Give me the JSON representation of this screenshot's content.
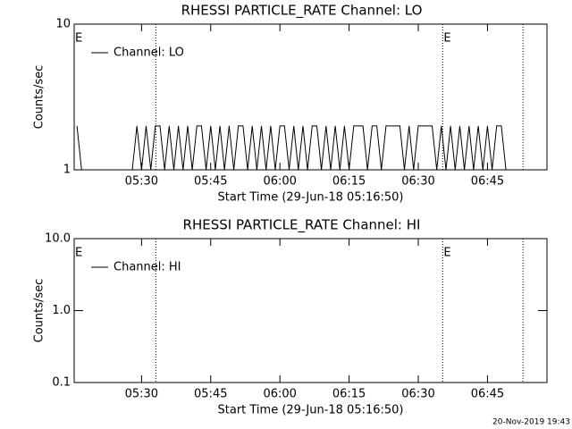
{
  "chart_data": [
    {
      "type": "line",
      "title": "RHESSI PARTICLE_RATE Channel: LO",
      "ylabel": "Counts/sec",
      "xlabel": "Start Time (29-Jun-18 05:16:50)",
      "ylog": true,
      "ylim": [
        1,
        10
      ],
      "yticks": [
        1,
        10
      ],
      "xlim": [
        315.4,
        417.9
      ],
      "xticks": [
        {
          "value": 330,
          "label": "05:30"
        },
        {
          "value": 345,
          "label": "05:45"
        },
        {
          "value": 360,
          "label": "06:00"
        },
        {
          "value": 375,
          "label": "06:15"
        },
        {
          "value": 390,
          "label": "06:30"
        },
        {
          "value": 405,
          "label": "06:45"
        }
      ],
      "legend": "upper left",
      "vlines": [
        333.1,
        395.3,
        412.7
      ],
      "annotations": [
        {
          "text": "E",
          "x": 315.4
        },
        {
          "text": "E",
          "x": 395.3
        }
      ],
      "series": [
        {
          "name": "Channel: LO",
          "color": "#000000",
          "x": [
            316,
            317,
            318,
            319,
            320,
            321,
            322,
            323,
            324,
            325,
            326,
            327,
            328,
            329,
            330,
            331,
            332,
            333,
            334,
            335,
            336,
            337,
            338,
            339,
            340,
            341,
            342,
            343,
            344,
            345,
            346,
            347,
            348,
            349,
            350,
            351,
            352,
            353,
            354,
            355,
            356,
            357,
            358,
            359,
            360,
            361,
            362,
            363,
            364,
            365,
            366,
            367,
            368,
            369,
            370,
            371,
            372,
            373,
            374,
            375,
            376,
            377,
            378,
            379,
            380,
            381,
            382,
            383,
            384,
            385,
            386,
            387,
            388,
            389,
            390,
            391,
            392,
            393,
            394,
            395,
            396,
            397,
            398,
            399,
            400,
            401,
            402,
            403,
            404,
            405,
            406,
            407,
            408,
            409,
            410,
            411,
            412,
            413,
            414,
            415,
            416,
            417
          ],
          "values": [
            2,
            1,
            1,
            1,
            1,
            1,
            1,
            1,
            1,
            1,
            1,
            1,
            1,
            2,
            1,
            2,
            1,
            2,
            2,
            1,
            2,
            1,
            2,
            1,
            2,
            1,
            2,
            2,
            1,
            2,
            1,
            2,
            1,
            2,
            1,
            2,
            2,
            1,
            2,
            1,
            2,
            1,
            2,
            1,
            2,
            2,
            1,
            2,
            1,
            2,
            1,
            2,
            2,
            1,
            2,
            1,
            2,
            1,
            2,
            1,
            2,
            2,
            2,
            1,
            2,
            2,
            1,
            2,
            2,
            2,
            2,
            1,
            2,
            1,
            2,
            2,
            2,
            2,
            1,
            2,
            1,
            2,
            1,
            2,
            1,
            2,
            1,
            2,
            1,
            2,
            1,
            2,
            2,
            1,
            1,
            1,
            1,
            1,
            1,
            1,
            1,
            1
          ]
        }
      ]
    },
    {
      "type": "line",
      "title": "RHESSI PARTICLE_RATE Channel: HI",
      "ylabel": "Counts/sec",
      "xlabel": "Start Time (29-Jun-18 05:16:50)",
      "ylog": true,
      "ylim": [
        0.1,
        10
      ],
      "yticks": [
        0.1,
        {
          "value": 1,
          "label": "1.0"
        },
        {
          "value": 10,
          "label": "10.0"
        }
      ],
      "xlim": [
        315.4,
        417.9
      ],
      "xticks": [
        {
          "value": 330,
          "label": "05:30"
        },
        {
          "value": 345,
          "label": "05:45"
        },
        {
          "value": 360,
          "label": "06:00"
        },
        {
          "value": 375,
          "label": "06:15"
        },
        {
          "value": 390,
          "label": "06:30"
        },
        {
          "value": 405,
          "label": "06:45"
        }
      ],
      "legend": "upper left",
      "vlines": [
        333.1,
        395.3,
        412.7
      ],
      "annotations": [
        {
          "text": "E",
          "x": 315.4
        },
        {
          "text": "E",
          "x": 395.3
        }
      ],
      "series": [
        {
          "name": "Channel: HI",
          "color": "#000000",
          "x": [],
          "values": []
        }
      ]
    }
  ],
  "footer": "20-Nov-2019 19:43"
}
